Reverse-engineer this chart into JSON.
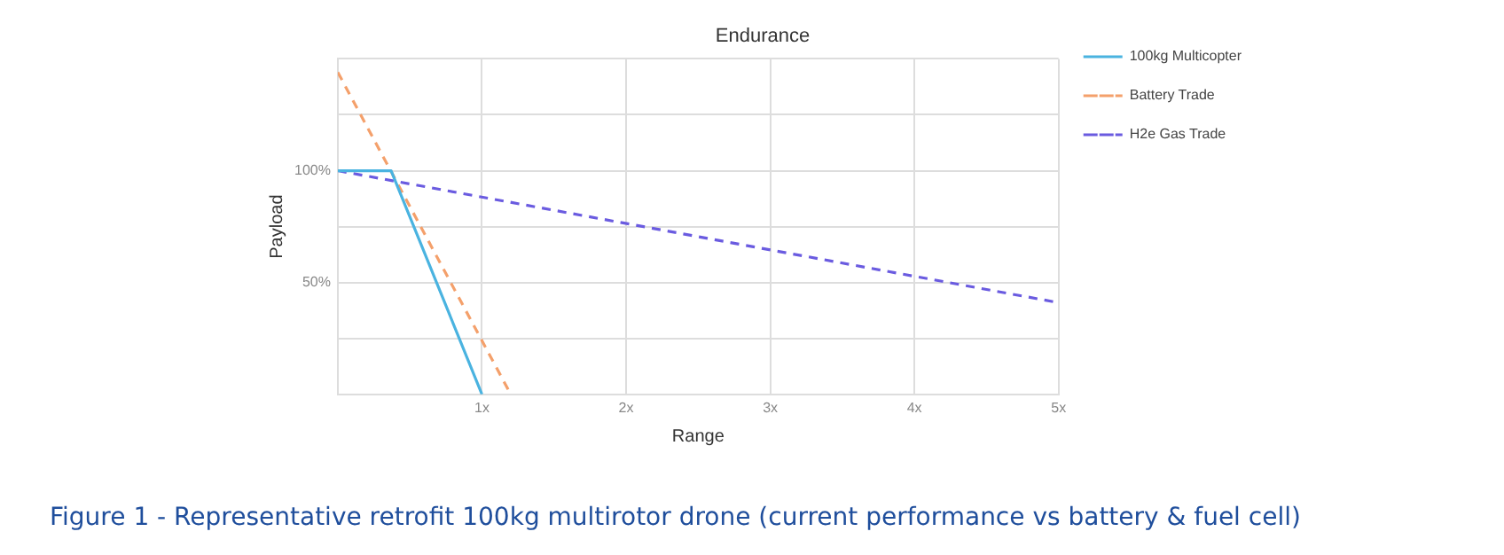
{
  "chart_data": {
    "type": "line",
    "title": "Endurance",
    "xlabel": "Range",
    "ylabel": "Payload",
    "xlim": [
      0,
      5
    ],
    "xticks": [
      {
        "value": 0,
        "label": null
      },
      {
        "value": 1,
        "label": "1x"
      },
      {
        "value": 2,
        "label": "2x"
      },
      {
        "value": 3,
        "label": "3x"
      },
      {
        "value": 4,
        "label": "4x"
      },
      {
        "value": 5,
        "label": "5x"
      }
    ],
    "ylim": [
      0,
      150
    ],
    "yticks": [
      {
        "value": 0,
        "label": null
      },
      {
        "value": 25,
        "label": null
      },
      {
        "value": 50,
        "label": "50%"
      },
      {
        "value": 75,
        "label": null
      },
      {
        "value": 100,
        "label": "100%"
      },
      {
        "value": 125,
        "label": null
      },
      {
        "value": 150,
        "label": null
      }
    ],
    "series": [
      {
        "name": "100kg Multicopter",
        "color": "#4ab3e0",
        "x": [
          0,
          0.37,
          1.0
        ],
        "values": [
          100,
          100,
          0
        ],
        "line_style": "solid"
      },
      {
        "name": "Battery Trade",
        "color": "#f4a06b",
        "x": [
          0,
          1.2
        ],
        "values": [
          144,
          0
        ],
        "line_style": "dashed"
      },
      {
        "name": "H2e Gas Trade",
        "color": "#6a5be0",
        "x": [
          0,
          5
        ],
        "values": [
          100,
          41
        ],
        "line_style": "dashed"
      }
    ],
    "grid": true,
    "legend": "right",
    "marker": "none",
    "annotations": [
      "Figure 1 - Representative retrofit 100kg multirotor drone (current performance vs battery & fuel cell)"
    ]
  }
}
